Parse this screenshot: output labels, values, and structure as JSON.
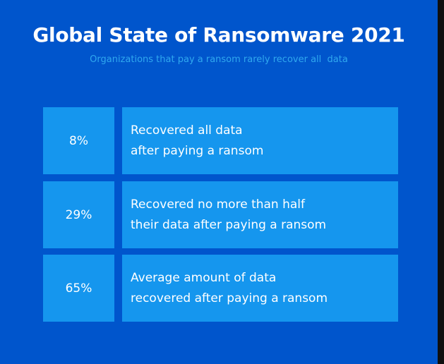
{
  "title": "Global State of Ransomware 2021",
  "subtitle": "Organizations that pay a ransom rarely recover all  data",
  "stats": [
    {
      "value": "8%",
      "lines": [
        "Recovered all data",
        "after paying a ransom"
      ]
    },
    {
      "value": "29%",
      "lines": [
        "Recovered no more than half",
        "their data after paying a ransom"
      ]
    },
    {
      "value": "65%",
      "lines": [
        "Average amount of data",
        "recovered after paying a ransom"
      ]
    }
  ],
  "colors": {
    "background": "#0055cc",
    "box": "#1596ee",
    "subtitle": "#2fa8ef",
    "text": "#ffffff"
  }
}
